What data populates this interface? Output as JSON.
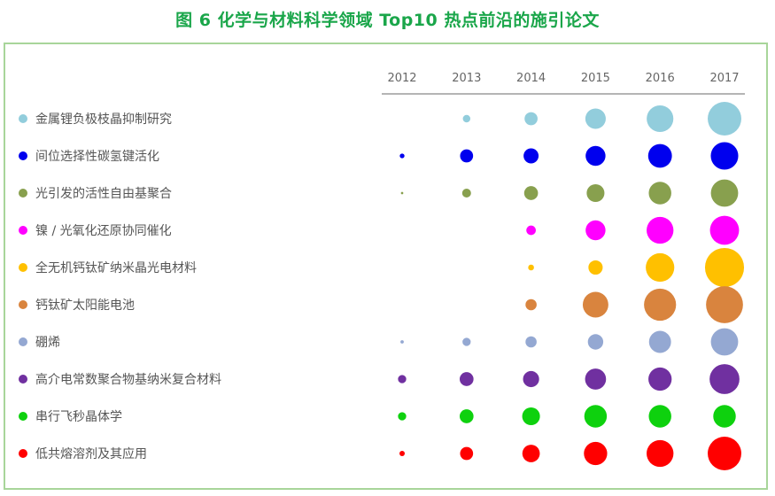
{
  "title": "图 6  化学与材料科学领域 Top10 热点前沿的施引论文",
  "chart_data": {
    "type": "bubble-matrix",
    "years": [
      "2012",
      "2013",
      "2014",
      "2015",
      "2016",
      "2017"
    ],
    "value_note": "relative citing-paper volume (bubble size scale 0-10)",
    "rows": [
      {
        "name": "金属锂负极枝晶抑制研究",
        "color": "#92cddc",
        "values": [
          0,
          0.5,
          1.5,
          3.7,
          6.3,
          10
        ]
      },
      {
        "name": "间位选择性碳氢键活化",
        "color": "#0000ee",
        "values": [
          0.2,
          1.5,
          2.0,
          3.5,
          5.0,
          6.7
        ]
      },
      {
        "name": "光引发的活性自由基聚合",
        "color": "#88a04e",
        "values": [
          0.05,
          0.7,
          1.7,
          2.8,
          4.5,
          6.6
        ]
      },
      {
        "name": "镍 / 光氧化还原协同催化",
        "color": "#ff00ff",
        "values": [
          0,
          0,
          0.8,
          3.5,
          6.4,
          7.5
        ]
      },
      {
        "name": "全无机钙钛矿纳米晶光电材料",
        "color": "#ffc000",
        "values": [
          0,
          0,
          0.3,
          1.8,
          7.2,
          13.5
        ]
      },
      {
        "name": "钙钛矿太阳能电池",
        "color": "#d9843e",
        "values": [
          0,
          0,
          1.1,
          5.8,
          9.1,
          12.1
        ]
      },
      {
        "name": "硼烯",
        "color": "#94a8d2",
        "values": [
          0.1,
          0.6,
          1.1,
          2.1,
          4.3,
          6.6
        ]
      },
      {
        "name": "高介电常数聚合物基纳米复合材料",
        "color": "#7030a0",
        "values": [
          0.6,
          1.7,
          2.3,
          3.9,
          4.8,
          7.9
        ]
      },
      {
        "name": "串行飞秒晶体学",
        "color": "#0ed10e",
        "values": [
          0.6,
          1.7,
          2.8,
          4.5,
          4.5,
          4.5
        ]
      },
      {
        "name": "低共熔溶剂及其应用",
        "color": "#ff0000",
        "values": [
          0.25,
          1.5,
          2.7,
          4.8,
          6.4,
          10
        ]
      }
    ]
  }
}
